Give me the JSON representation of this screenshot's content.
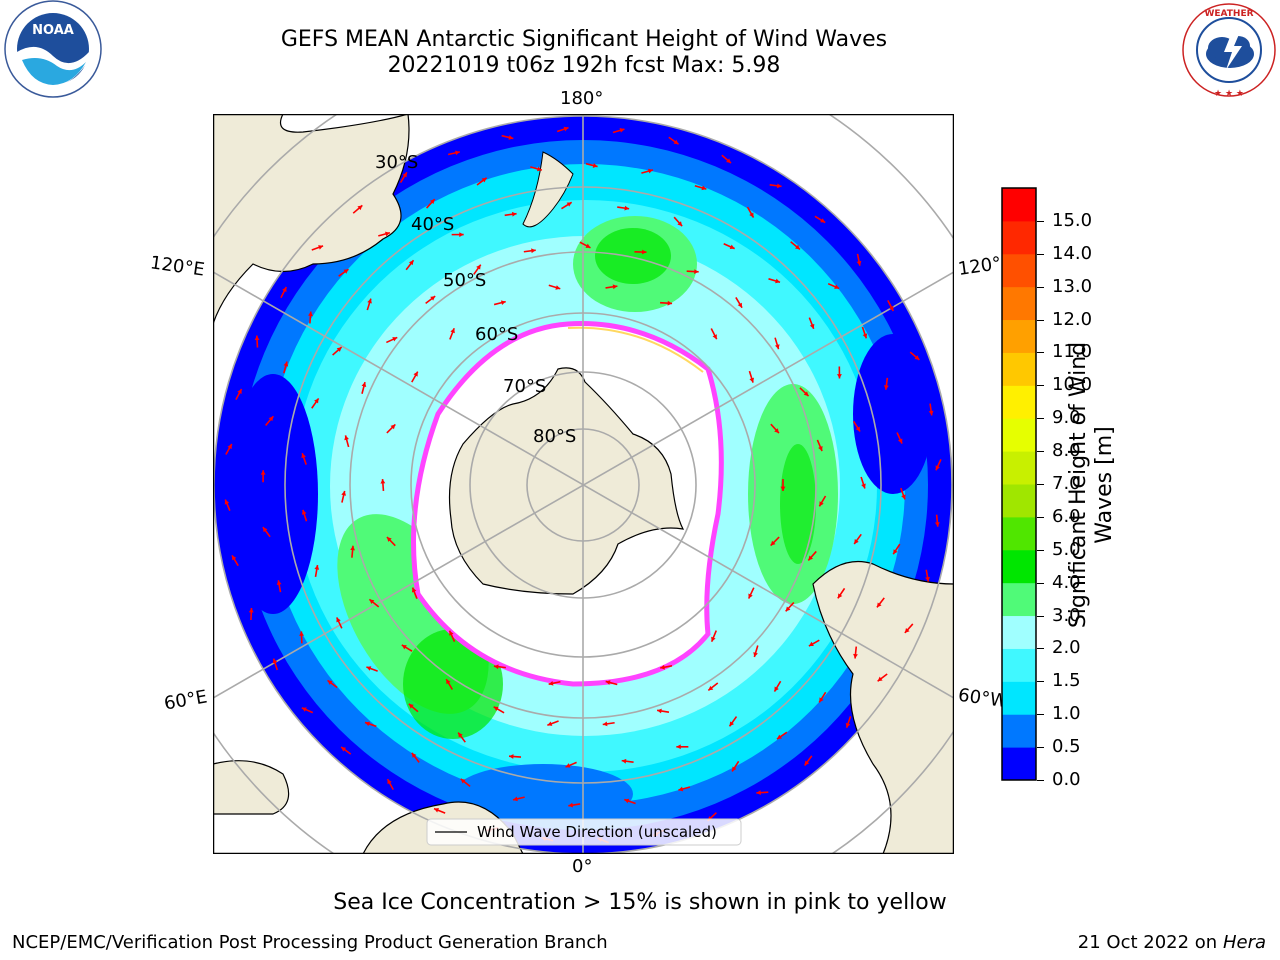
{
  "header": {
    "title_line1": "GEFS MEAN Antarctic Significant Height of Wind Waves",
    "title_line2": "20221019 t06z 192h fcst   Max: 5.98"
  },
  "logos": {
    "left": "NOAA",
    "left_ring": "NATIONAL OCEANIC AND ATMOSPHERIC ADMINISTRATION · U.S. DEPARTMENT OF COMMERCE",
    "right_ring": "NATIONAL WEATHER SERVICE"
  },
  "map": {
    "projection": "south-polar-stereographic",
    "longitude_labels": {
      "top": "180°",
      "bottom": "0°",
      "upper_left": "120°E",
      "lower_left": "60°E",
      "upper_right": "120°",
      "lower_right": "60°W"
    },
    "latitude_labels": [
      "30°S",
      "40°S",
      "50°S",
      "60°S",
      "70°S",
      "80°S"
    ],
    "legend_entry": "Wind Wave Direction (unscaled)",
    "ocean_color": "#00f0ff",
    "land_color": "#efebd8",
    "ice_edge_color": "#ff44ff"
  },
  "colorbar": {
    "label": "Significant Height of Wind Waves [m]",
    "ticks": [
      "0.0",
      "0.5",
      "1.0",
      "1.5",
      "2.0",
      "3.0",
      "4.0",
      "5.0",
      "6.0",
      "7.0",
      "8.0",
      "9.0",
      "10.0",
      "11.0",
      "12.0",
      "13.0",
      "14.0",
      "15.0"
    ],
    "colors": [
      "#0000ff",
      "#0078ff",
      "#00e6ff",
      "#40f8ff",
      "#a0ffff",
      "#50fa78",
      "#00e600",
      "#50e600",
      "#a0e600",
      "#c8f000",
      "#e6ff00",
      "#fff000",
      "#ffc800",
      "#ffa000",
      "#ff7800",
      "#ff5000",
      "#ff2800",
      "#ff0000"
    ]
  },
  "footer": {
    "note": "Sea Ice Concentration > 15% is shown in pink to yellow",
    "left": "NCEP/EMC/Verification Post Processing Product Generation Branch",
    "right_prefix": "21 Oct 2022 on ",
    "right_host": "Hera"
  }
}
